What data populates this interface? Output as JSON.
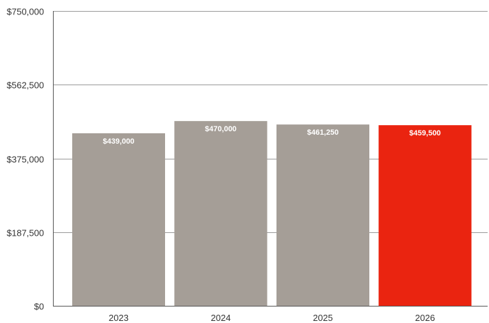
{
  "chart_data": {
    "type": "bar",
    "categories": [
      "2023",
      "2024",
      "2025",
      "2026"
    ],
    "values": [
      439000,
      470000,
      461250,
      459500
    ],
    "data_labels": [
      "$439,000",
      "$470,000",
      "$461,250",
      "$459,500"
    ],
    "title": "",
    "xlabel": "",
    "ylabel": "",
    "ylim": [
      0,
      750000
    ],
    "y_ticks": [
      0,
      187500,
      375000,
      562500,
      750000
    ],
    "y_tick_labels": [
      "$0",
      "$187,500",
      "$375,000",
      "$562,500",
      "$750,000"
    ],
    "grid": true,
    "colors": {
      "default_bar": "#a59e97",
      "highlight_bar": "#ea2410"
    },
    "highlight_index": 3
  }
}
